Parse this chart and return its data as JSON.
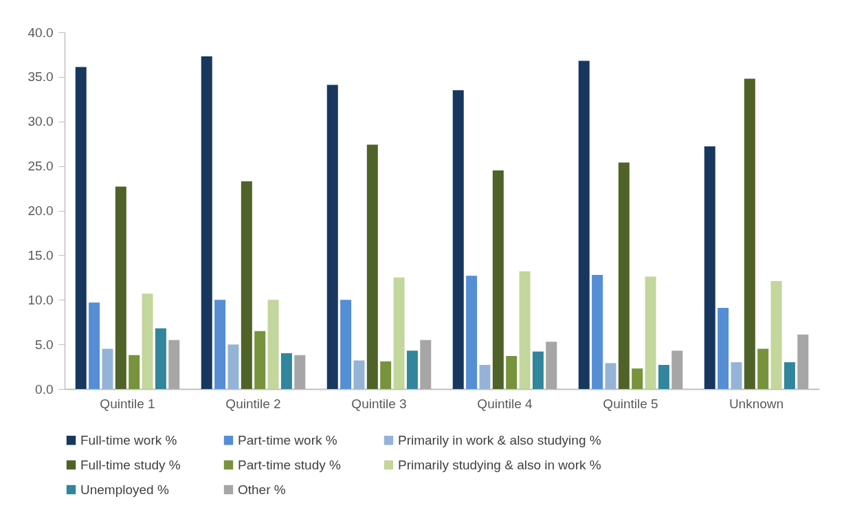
{
  "chart_data": {
    "type": "bar",
    "categories": [
      "Quintile 1",
      "Quintile 2",
      "Quintile 3",
      "Quintile 4",
      "Quintile 5",
      "Unknown"
    ],
    "series": [
      {
        "name": "Full-time work %",
        "color": "#17375e",
        "values": [
          36.1,
          37.3,
          34.1,
          33.5,
          36.8,
          27.2
        ]
      },
      {
        "name": "Part-time work %",
        "color": "#558ed5",
        "values": [
          9.7,
          10.0,
          10.0,
          12.7,
          12.8,
          9.1
        ]
      },
      {
        "name": "Primarily in work & also studying %",
        "color": "#95b3d7",
        "values": [
          4.5,
          5.0,
          3.2,
          2.7,
          2.9,
          3.0
        ]
      },
      {
        "name": "Full-time study %",
        "color": "#4f6228",
        "values": [
          22.7,
          23.3,
          27.4,
          24.5,
          25.4,
          34.8
        ]
      },
      {
        "name": "Part-time study %",
        "color": "#77933c",
        "values": [
          3.8,
          6.5,
          3.1,
          3.7,
          2.3,
          4.5
        ]
      },
      {
        "name": "Primarily studying & also in work %",
        "color": "#c3d69b",
        "values": [
          10.7,
          10.0,
          12.5,
          13.2,
          12.6,
          12.1
        ]
      },
      {
        "name": "Unemployed %",
        "color": "#31859c",
        "values": [
          6.8,
          4.0,
          4.3,
          4.2,
          2.7,
          3.0
        ]
      },
      {
        "name": "Other %",
        "color": "#a6a6a6",
        "values": [
          5.5,
          3.8,
          5.5,
          5.3,
          4.3,
          6.1
        ]
      }
    ],
    "ylim": [
      0,
      40
    ],
    "yticks": [
      {
        "value": 0,
        "label": "0.0"
      },
      {
        "value": 5,
        "label": "5.0"
      },
      {
        "value": 10,
        "label": "10.0"
      },
      {
        "value": 15,
        "label": "15.0"
      },
      {
        "value": 20,
        "label": "20.0"
      },
      {
        "value": 25,
        "label": "25.0"
      },
      {
        "value": 30,
        "label": "30.0"
      },
      {
        "value": 35,
        "label": "35.0"
      },
      {
        "value": 40,
        "label": "40.0"
      }
    ],
    "legend": "bottom"
  }
}
